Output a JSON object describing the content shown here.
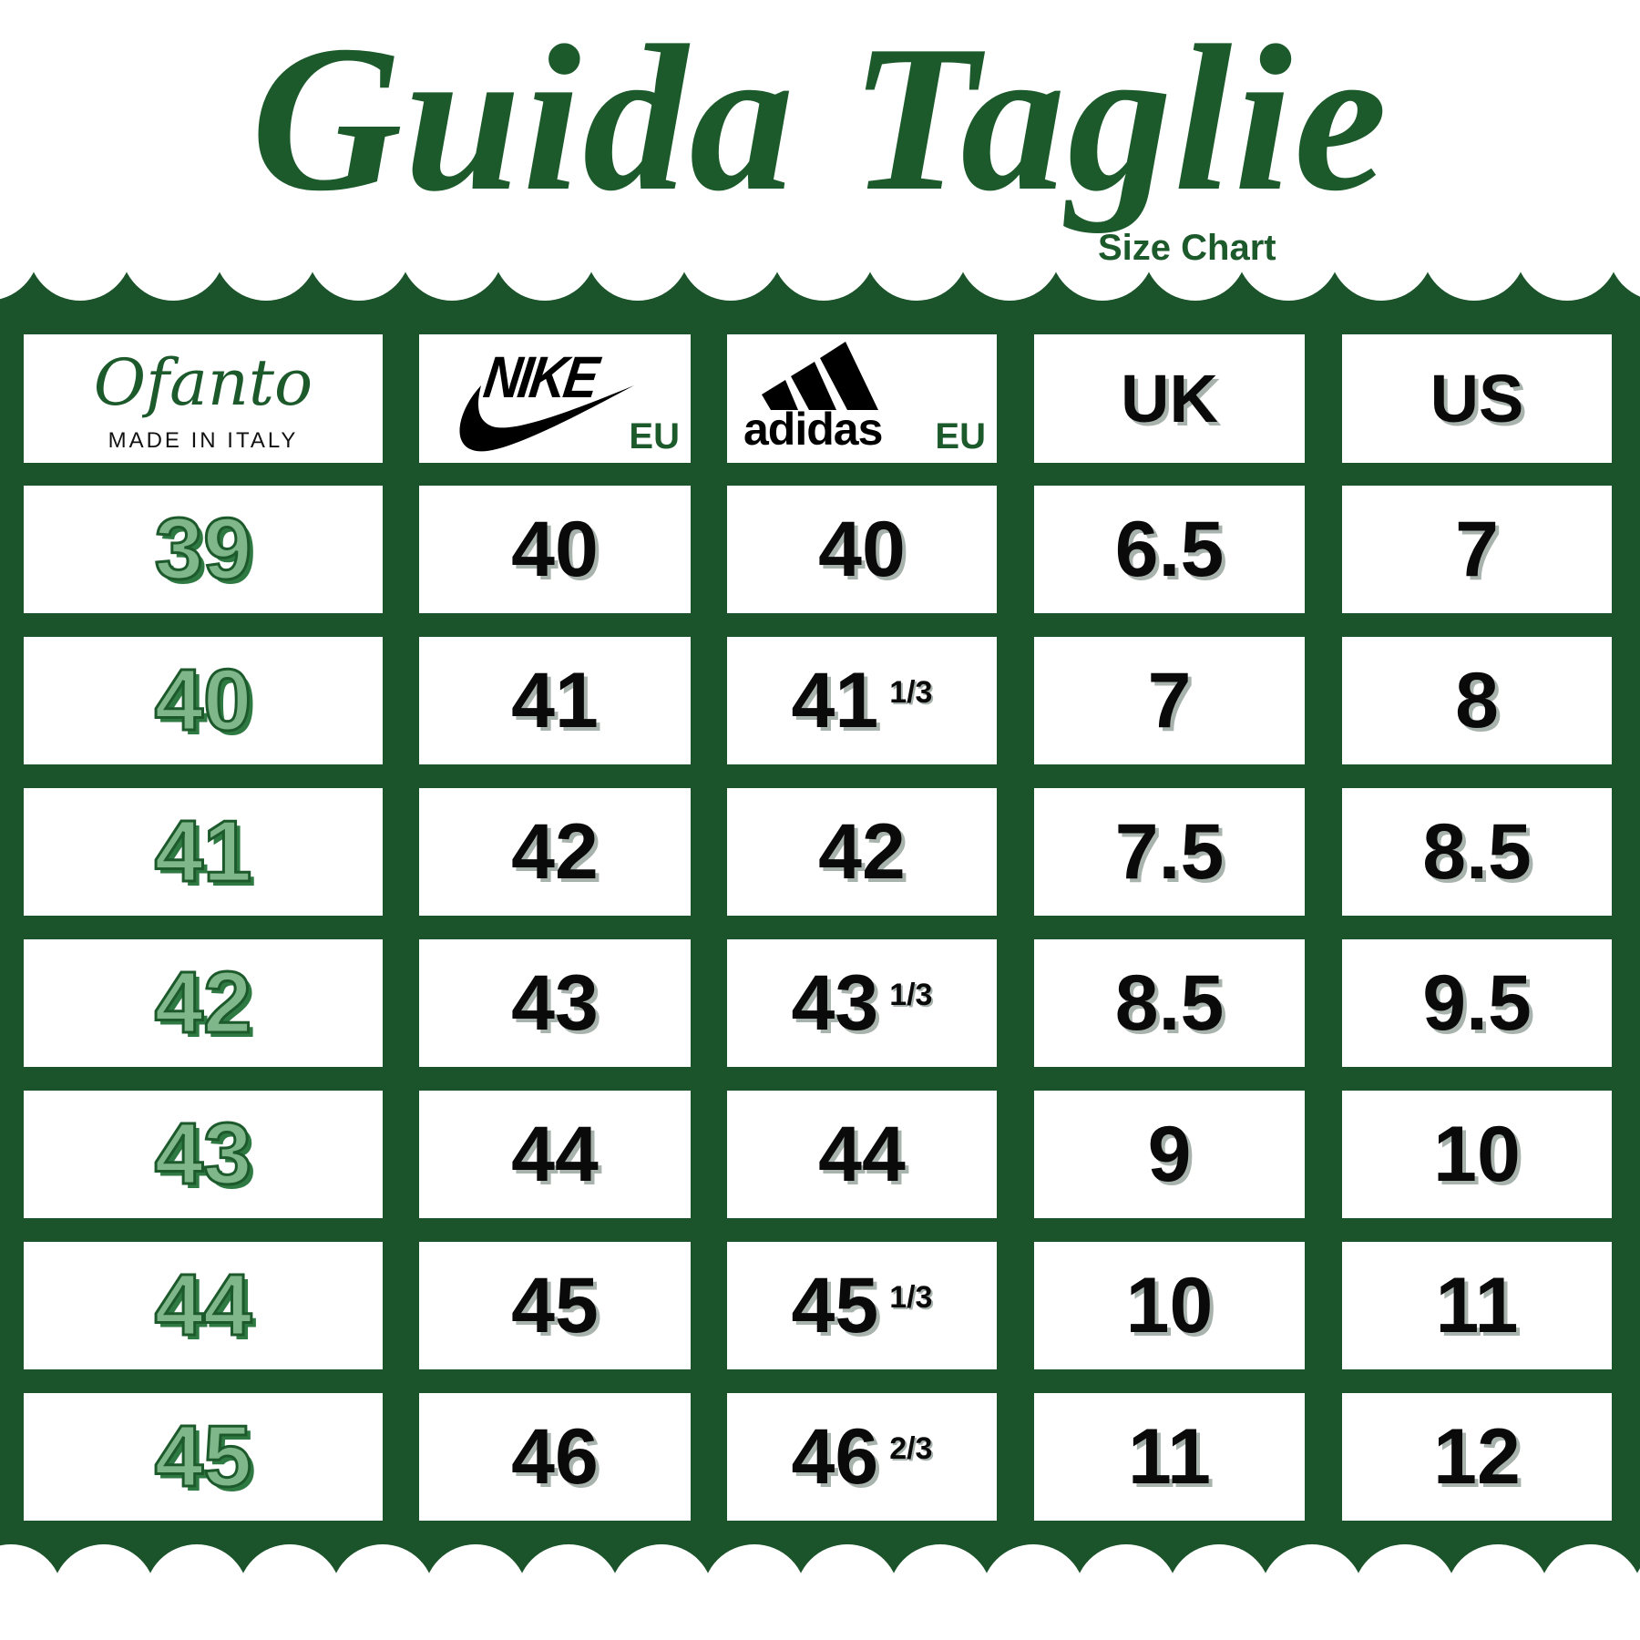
{
  "title": "Guida Taglie",
  "subtitle": "Size Chart",
  "colors": {
    "brand_green": "#1b532b",
    "accent_light_green": "#7fb68a",
    "text": "#0a0a0a"
  },
  "header": {
    "ofanto": {
      "logo_text": "Ofanto",
      "tagline": "MADE IN ITALY"
    },
    "nike": {
      "logo_text": "NIKE",
      "unit": "EU"
    },
    "adidas": {
      "logo_text": "adidas",
      "unit": "EU"
    },
    "uk": "UK",
    "us": "US"
  },
  "rows": [
    {
      "ofanto": "39",
      "nike": "40",
      "adidas": "40",
      "adidas_fraction": "",
      "uk": "6.5",
      "us": "7"
    },
    {
      "ofanto": "40",
      "nike": "41",
      "adidas": "41",
      "adidas_fraction": "1/3",
      "uk": "7",
      "us": "8"
    },
    {
      "ofanto": "41",
      "nike": "42",
      "adidas": "42",
      "adidas_fraction": "",
      "uk": "7.5",
      "us": "8.5"
    },
    {
      "ofanto": "42",
      "nike": "43",
      "adidas": "43",
      "adidas_fraction": "1/3",
      "uk": "8.5",
      "us": "9.5"
    },
    {
      "ofanto": "43",
      "nike": "44",
      "adidas": "44",
      "adidas_fraction": "",
      "uk": "9",
      "us": "10"
    },
    {
      "ofanto": "44",
      "nike": "45",
      "adidas": "45",
      "adidas_fraction": "1/3",
      "uk": "10",
      "us": "11"
    },
    {
      "ofanto": "45",
      "nike": "46",
      "adidas": "46",
      "adidas_fraction": "2/3",
      "uk": "11",
      "us": "12"
    }
  ]
}
